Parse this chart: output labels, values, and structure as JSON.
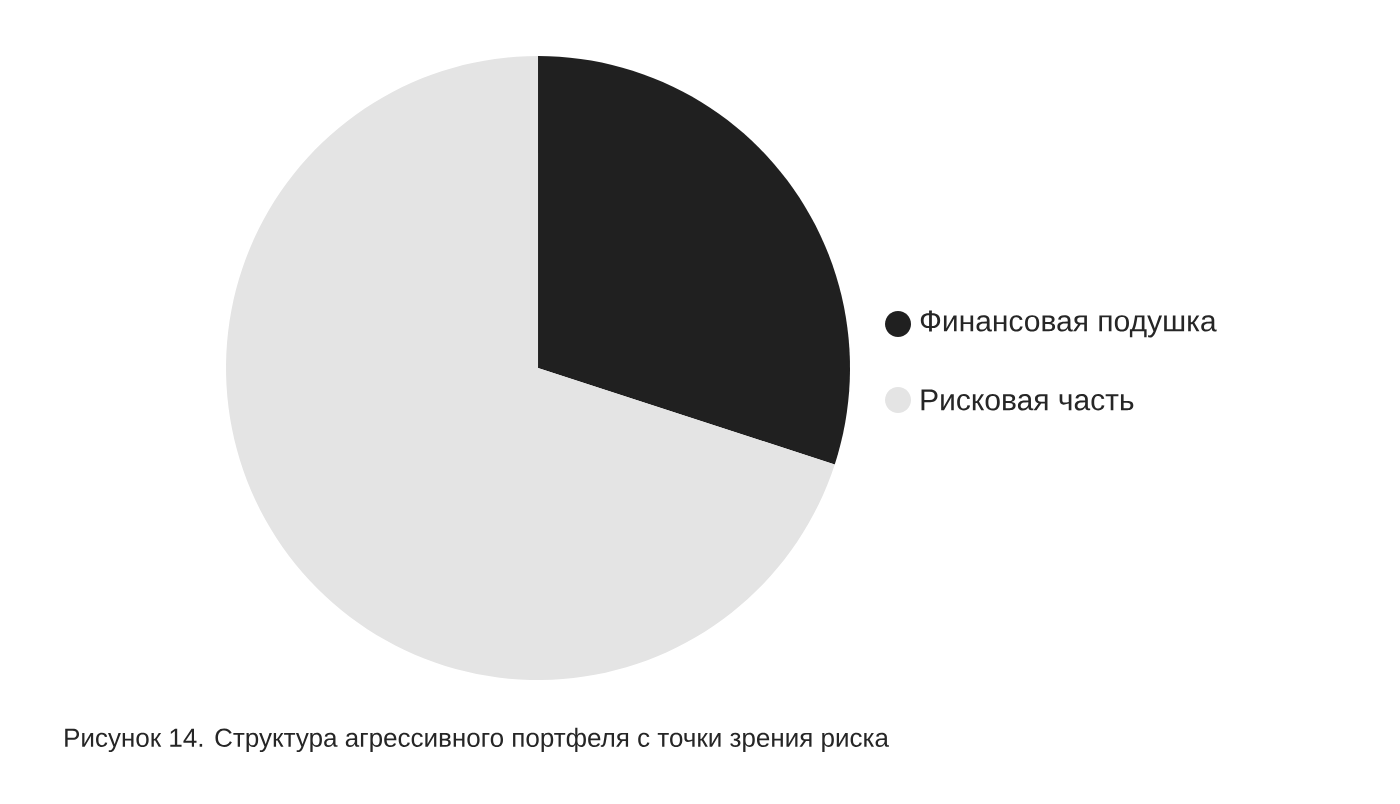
{
  "chart_data": {
    "type": "pie",
    "categories": [
      "Финансовая подушка",
      "Рисковая часть"
    ],
    "values": [
      30,
      70
    ],
    "colors": [
      "#202020",
      "#e4e4e4"
    ],
    "legend": "right",
    "annotations": [
      "Рисунок 14. Структура агрессивного портфеля с точки зрения риска"
    ]
  }
}
